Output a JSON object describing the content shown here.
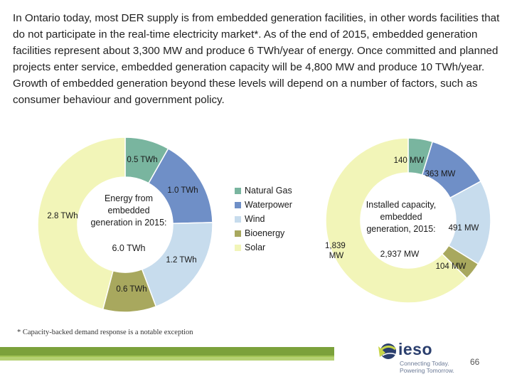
{
  "intro_text": "In Ontario today, most DER supply is from embedded generation facilities, in other words facilities that do not participate in the real-time electricity market*. As of the end of 2015, embedded generation facilities represent about 3,300 MW and produce 6 TWh/year of energy. Once committed and planned projects enter service, embedded generation capacity will be 4,800 MW and produce 10 TWh/year. Growth of embedded generation beyond these levels will depend on a number of factors, such as consumer behaviour and government policy.",
  "footnote": "* Capacity-backed demand response is a notable exception",
  "chart_data": [
    {
      "type": "pie",
      "variant": "donut",
      "center_title": [
        "Energy from",
        "embedded",
        "generation in 2015:"
      ],
      "center_total": "6.0 TWh",
      "categories": [
        "Natural Gas",
        "Waterpower",
        "Wind",
        "Bioenergy",
        "Solar"
      ],
      "values": [
        0.5,
        1.0,
        1.2,
        0.6,
        2.8
      ],
      "data_labels": [
        "0.5 TWh",
        "1.0 TWh",
        "1.2 TWh",
        "0.6 TWh",
        "2.8 TWh"
      ],
      "colors": [
        "#79b59f",
        "#6f8fc7",
        "#c7dced",
        "#a8a85e",
        "#f2f5b8"
      ]
    },
    {
      "type": "pie",
      "variant": "donut",
      "center_title": [
        "Installed capacity,",
        "embedded",
        "generation, 2015:"
      ],
      "center_total": "2,937 MW",
      "categories": [
        "Natural Gas",
        "Waterpower",
        "Wind",
        "Bioenergy",
        "Solar"
      ],
      "values": [
        140,
        363,
        491,
        104,
        1839
      ],
      "data_labels": [
        "140 MW",
        "363 MW",
        "491 MW",
        "104 MW",
        "1,839 MW"
      ],
      "colors": [
        "#79b59f",
        "#6f8fc7",
        "#c7dced",
        "#a8a85e",
        "#f2f5b8"
      ]
    }
  ],
  "legend": [
    {
      "label": "Natural Gas",
      "color": "#79b59f"
    },
    {
      "label": "Waterpower",
      "color": "#6f8fc7"
    },
    {
      "label": "Wind",
      "color": "#c7dced"
    },
    {
      "label": "Bioenergy",
      "color": "#a8a85e"
    },
    {
      "label": "Solar",
      "color": "#f2f5b8"
    }
  ],
  "footer": {
    "logo_text": "ieso",
    "tagline": [
      "Connecting Today.",
      "Powering Tomorrow."
    ],
    "page_number": "66"
  }
}
